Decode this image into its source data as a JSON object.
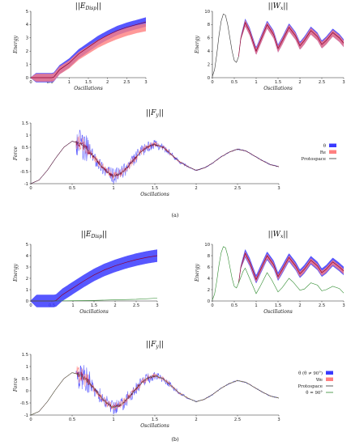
{
  "captions": {
    "a": "(a)",
    "b": "(b)"
  },
  "colors": {
    "theta": "#3a3aff",
    "re": "#ff8080",
    "mean": "#8a0030",
    "protospace": "#333333",
    "theta90": "#2e8b2e"
  },
  "legend_a": [
    {
      "label": "θ",
      "kind": "box",
      "color": "#3a3aff"
    },
    {
      "label": "Re",
      "kind": "box",
      "color": "#ff8080"
    },
    {
      "label": "Protospace",
      "kind": "line",
      "color": "#333333"
    }
  ],
  "legend_b": [
    {
      "label": "θ   (θ ≠ 90°)",
      "kind": "box",
      "color": "#3a3aff"
    },
    {
      "label": "We",
      "kind": "box",
      "color": "#ff8080"
    },
    {
      "label": "Protospace",
      "kind": "line",
      "color": "#333333"
    },
    {
      "label": "θ = 90°",
      "kind": "line",
      "color": "#2e8b2e"
    }
  ],
  "chart_data": [
    {
      "id": "a1",
      "type": "area",
      "title": "||E_Disp||",
      "xlabel": "Oscillations",
      "ylabel": "Energy",
      "xlim": [
        0,
        3
      ],
      "ylim": [
        0,
        5
      ],
      "xticks": [
        0,
        0.5,
        1,
        1.5,
        2,
        2.5,
        3
      ],
      "yticks": [
        0,
        1,
        2,
        3,
        4,
        5
      ],
      "series": [
        {
          "name": "θ",
          "x": [
            0,
            0.55,
            0.6,
            0.75,
            1,
            1.25,
            1.5,
            1.75,
            2,
            2.25,
            2.5,
            2.75,
            3
          ],
          "y": [
            0,
            0,
            0.05,
            0.6,
            1.1,
            1.8,
            2.3,
            2.8,
            3.2,
            3.55,
            3.8,
            4.0,
            4.2
          ],
          "spread": 0.35
        },
        {
          "name": "Re",
          "x": [
            0,
            0.55,
            0.6,
            0.75,
            1,
            1.25,
            1.5,
            1.75,
            2,
            2.25,
            2.5,
            2.75,
            3
          ],
          "y": [
            0,
            0,
            0.04,
            0.55,
            1.0,
            1.65,
            2.1,
            2.55,
            2.9,
            3.2,
            3.45,
            3.65,
            3.8
          ],
          "spread": 0.3
        }
      ]
    },
    {
      "id": "a2",
      "type": "line",
      "title": "||W_x||",
      "xlabel": "Oscillations",
      "ylabel": "Energy",
      "xlim": [
        0,
        3
      ],
      "ylim": [
        0,
        10
      ],
      "xticks": [
        0,
        0.5,
        1,
        1.5,
        2,
        2.5,
        3
      ],
      "yticks": [
        0,
        2,
        4,
        6,
        8,
        10
      ],
      "series": [
        {
          "name": "Protospace",
          "x": [
            0,
            0.05,
            0.1,
            0.15,
            0.2,
            0.25,
            0.3,
            0.35,
            0.4,
            0.45,
            0.5,
            0.55,
            0.6
          ],
          "y": [
            0.2,
            1.2,
            3.5,
            6.3,
            8.5,
            9.6,
            9.4,
            8.0,
            6.0,
            4.0,
            2.6,
            2.3,
            3.2
          ]
        },
        {
          "name": "θ",
          "x": [
            0.6,
            0.65,
            0.75,
            0.85,
            1,
            1.1,
            1.25,
            1.4,
            1.5,
            1.6,
            1.75,
            1.9,
            2,
            2.1,
            2.25,
            2.4,
            2.5,
            2.6,
            2.75,
            2.9,
            3
          ],
          "y": [
            3.2,
            6.0,
            8.3,
            7.0,
            4.0,
            5.6,
            8.0,
            6.5,
            4.4,
            5.6,
            7.6,
            6.3,
            4.8,
            5.6,
            7.1,
            6.2,
            5.0,
            5.6,
            6.8,
            6.0,
            5.2
          ],
          "spread": 0.6
        },
        {
          "name": "Re",
          "x": [
            0.6,
            0.65,
            0.75,
            0.85,
            1,
            1.1,
            1.25,
            1.4,
            1.5,
            1.6,
            1.75,
            1.9,
            2,
            2.1,
            2.25,
            2.4,
            2.5,
            2.6,
            2.75,
            2.9,
            3
          ],
          "y": [
            3.2,
            5.9,
            8.2,
            6.9,
            3.9,
            5.5,
            7.9,
            6.4,
            4.3,
            5.5,
            7.5,
            6.2,
            4.7,
            5.5,
            7.0,
            6.1,
            4.9,
            5.5,
            6.7,
            5.9,
            5.1
          ],
          "spread": 0.5
        }
      ]
    },
    {
      "id": "a3",
      "type": "line",
      "title": "||F_y||",
      "xlabel": "Oscillations",
      "ylabel": "Force",
      "xlim": [
        0,
        3
      ],
      "ylim": [
        -1,
        1.5
      ],
      "xticks": [
        0,
        0.5,
        1,
        1.5,
        2,
        2.5,
        3
      ],
      "yticks": [
        -1,
        -0.5,
        0,
        0.5,
        1,
        1.5
      ],
      "series": [
        {
          "name": "Protospace",
          "x": [
            0,
            0.1,
            0.2,
            0.3,
            0.4,
            0.5,
            0.6,
            0.7,
            0.8,
            0.9,
            1,
            1.1,
            1.2,
            1.3,
            1.4,
            1.5,
            1.6,
            1.7,
            1.8,
            1.9,
            2,
            2.1,
            2.2,
            2.3,
            2.4,
            2.5,
            2.6,
            2.7,
            2.8,
            2.9,
            3
          ],
          "y": [
            -1,
            -0.85,
            -0.45,
            0.05,
            0.5,
            0.75,
            0.65,
            0.35,
            -0.05,
            -0.45,
            -0.7,
            -0.55,
            -0.2,
            0.2,
            0.5,
            0.62,
            0.5,
            0.2,
            -0.1,
            -0.3,
            -0.45,
            -0.35,
            -0.15,
            0.1,
            0.3,
            0.42,
            0.35,
            0.15,
            -0.05,
            -0.22,
            -0.3
          ]
        },
        {
          "name": "θ",
          "noise_from": 0.55,
          "noise_to": 2.0,
          "noise_amp": 0.3
        }
      ]
    },
    {
      "id": "b1",
      "type": "area",
      "title": "||E_Disp||",
      "xlabel": "Oscillations",
      "ylabel": "Energy",
      "xlim": [
        0,
        3
      ],
      "ylim": [
        0,
        5
      ],
      "xticks": [
        0,
        0.5,
        1,
        1.5,
        2,
        2.5,
        3
      ],
      "yticks": [
        0,
        1,
        2,
        3,
        4,
        5
      ],
      "series": [
        {
          "name": "θ",
          "x": [
            0,
            0.55,
            0.6,
            0.75,
            1,
            1.25,
            1.5,
            1.75,
            2,
            2.25,
            2.5,
            2.75,
            3
          ],
          "y": [
            0,
            0,
            0.05,
            0.55,
            1.15,
            1.75,
            2.3,
            2.75,
            3.1,
            3.4,
            3.65,
            3.85,
            4.0
          ],
          "spread": 0.55
        },
        {
          "name": "θ = 90°",
          "x": [
            0,
            0.5,
            1,
            1.5,
            2,
            2.5,
            3
          ],
          "y": [
            0,
            0,
            0.02,
            0.05,
            0.1,
            0.15,
            0.25
          ]
        }
      ]
    },
    {
      "id": "b2",
      "type": "line",
      "title": "||W_x||",
      "xlabel": "Oscillations",
      "ylabel": "Energy",
      "xlim": [
        0,
        3
      ],
      "ylim": [
        0,
        10
      ],
      "xticks": [
        0,
        0.5,
        1,
        1.5,
        2,
        2.5,
        3
      ],
      "yticks": [
        0,
        2,
        4,
        6,
        8,
        10
      ],
      "series": [
        {
          "name": "θ = 90°",
          "x": [
            0,
            0.05,
            0.1,
            0.15,
            0.2,
            0.25,
            0.3,
            0.35,
            0.4,
            0.45,
            0.5,
            0.55,
            0.6,
            0.7,
            0.75,
            0.85,
            1,
            1.1,
            1.25,
            1.35,
            1.5,
            1.6,
            1.75,
            1.85,
            2,
            2.1,
            2.25,
            2.4,
            2.5,
            2.6,
            2.75,
            2.9,
            3
          ],
          "y": [
            0.2,
            1.2,
            3.5,
            6.3,
            8.5,
            9.6,
            9.4,
            8.0,
            6.0,
            4.0,
            2.6,
            2.3,
            3.2,
            5.2,
            5.8,
            4.0,
            1.3,
            2.7,
            5.0,
            3.8,
            1.6,
            2.4,
            4.0,
            3.3,
            1.9,
            2.1,
            3.2,
            2.8,
            1.8,
            2.0,
            2.6,
            2.2,
            1.4
          ]
        },
        {
          "name": "θ",
          "x": [
            0.6,
            0.65,
            0.75,
            0.85,
            1,
            1.1,
            1.25,
            1.4,
            1.5,
            1.6,
            1.75,
            1.9,
            2,
            2.1,
            2.25,
            2.4,
            2.5,
            2.6,
            2.75,
            2.9,
            3
          ],
          "y": [
            3.2,
            6.0,
            8.4,
            6.9,
            3.8,
            5.5,
            8.0,
            6.4,
            4.3,
            5.6,
            7.7,
            6.2,
            4.8,
            5.6,
            7.2,
            6.2,
            5.0,
            5.6,
            6.9,
            6.0,
            5.3
          ],
          "spread": 0.75
        },
        {
          "name": "We",
          "x": [
            0.6,
            0.65,
            0.75,
            0.85,
            1,
            1.1,
            1.25,
            1.4,
            1.5,
            1.6,
            1.75,
            1.9,
            2,
            2.1,
            2.25,
            2.4,
            2.5,
            2.6,
            2.75,
            2.9,
            3
          ],
          "y": [
            3.2,
            5.9,
            8.3,
            6.8,
            3.7,
            5.4,
            7.9,
            6.3,
            4.2,
            5.5,
            7.6,
            6.1,
            4.7,
            5.5,
            7.1,
            6.1,
            4.9,
            5.5,
            6.8,
            5.9,
            5.2
          ],
          "spread": 0.45
        }
      ]
    },
    {
      "id": "b3",
      "type": "line",
      "title": "||F_y||",
      "xlabel": "Oscillations",
      "ylabel": "Force",
      "xlim": [
        0,
        3
      ],
      "ylim": [
        -1,
        1.5
      ],
      "xticks": [
        0,
        0.5,
        1,
        1.5,
        2,
        2.5,
        3
      ],
      "yticks": [
        -1,
        -0.5,
        0,
        0.5,
        1,
        1.5
      ],
      "series": [
        {
          "name": "Protospace",
          "x": [
            0,
            0.1,
            0.2,
            0.3,
            0.4,
            0.5,
            0.6,
            0.7,
            0.8,
            0.9,
            1,
            1.1,
            1.2,
            1.3,
            1.4,
            1.5,
            1.6,
            1.7,
            1.8,
            1.9,
            2,
            2.1,
            2.2,
            2.3,
            2.4,
            2.5,
            2.6,
            2.7,
            2.8,
            2.9,
            3
          ],
          "y": [
            -1,
            -0.85,
            -0.45,
            0.05,
            0.5,
            0.75,
            0.65,
            0.35,
            -0.05,
            -0.45,
            -0.7,
            -0.55,
            -0.2,
            0.2,
            0.5,
            0.62,
            0.5,
            0.2,
            -0.1,
            -0.3,
            -0.45,
            -0.35,
            -0.15,
            0.1,
            0.3,
            0.42,
            0.35,
            0.15,
            -0.05,
            -0.22,
            -0.3
          ]
        },
        {
          "name": "θ",
          "noise_from": 0.55,
          "noise_to": 2.0,
          "noise_amp": 0.3
        }
      ]
    }
  ]
}
